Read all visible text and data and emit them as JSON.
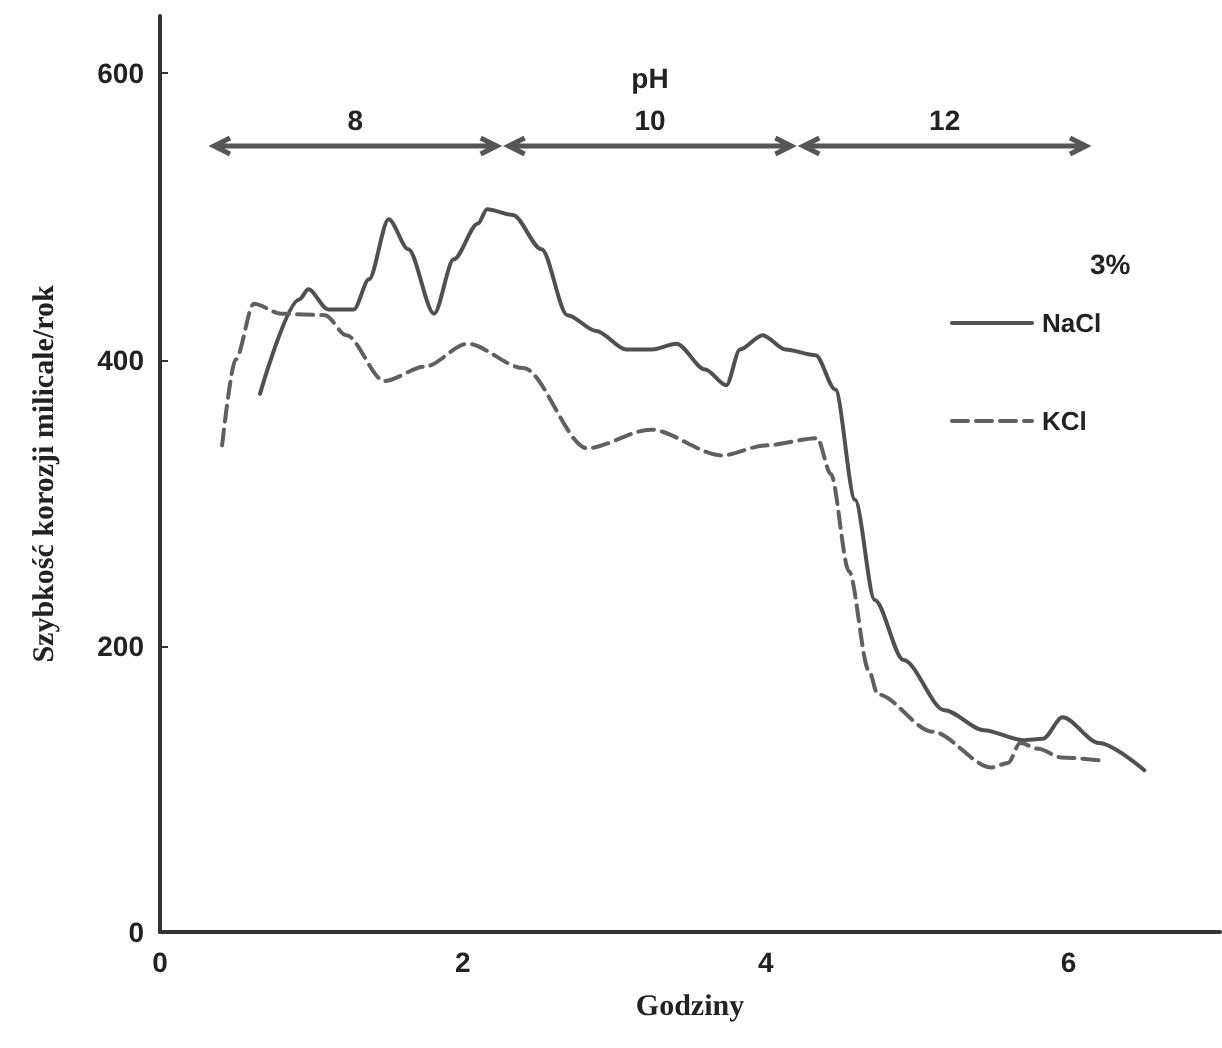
{
  "chart_data": {
    "type": "line",
    "xlabel": "Godziny",
    "ylabel": "Szybkość korozji milicale/rok",
    "legend_title": "3%",
    "legend": "right",
    "marker": "none",
    "grid": false,
    "xlim": [
      0,
      7
    ],
    "xticks": [
      0,
      2,
      4,
      6
    ],
    "ylim": [
      0,
      640
    ],
    "yticks": [
      0,
      200,
      400,
      600
    ],
    "annotations": [
      "pH",
      "8",
      "10",
      "12"
    ],
    "series": [
      {
        "name": "NaCl",
        "color": "#505050",
        "line_style": "solid",
        "x": [
          0.66,
          0.92,
          0.98,
          1.11,
          1.28,
          1.38,
          1.51,
          1.64,
          1.81,
          1.94,
          2.1,
          2.16,
          2.33,
          2.52,
          2.69,
          2.88,
          3.08,
          3.25,
          3.41,
          3.6,
          3.74,
          3.83,
          3.98,
          4.13,
          4.33,
          4.46,
          4.59,
          4.72,
          4.91,
          5.18,
          5.44,
          5.7,
          5.83,
          5.96,
          6.2,
          6.5
        ],
        "values": [
          376,
          442,
          449,
          435,
          435,
          456,
          498,
          477,
          432,
          470,
          495,
          505,
          501,
          477,
          431,
          420,
          407,
          407,
          411,
          393,
          382,
          407,
          417,
          407,
          403,
          379,
          302,
          232,
          190,
          155,
          141,
          134,
          135,
          150,
          132,
          113
        ]
      },
      {
        "name": "KCl",
        "color": "#606060",
        "line_style": "dashed",
        "x": [
          0.41,
          0.5,
          0.62,
          0.8,
          1.09,
          1.23,
          1.48,
          1.75,
          2.03,
          2.4,
          2.82,
          3.24,
          3.71,
          4.0,
          4.34,
          4.43,
          4.55,
          4.68,
          4.74,
          5.1,
          5.49,
          5.6,
          5.68,
          5.8,
          5.95,
          6.2
        ],
        "values": [
          340,
          400,
          439,
          432,
          431,
          417,
          385,
          395,
          411,
          394,
          338,
          351,
          333,
          340,
          345,
          320,
          252,
          183,
          166,
          140,
          115,
          118,
          132,
          128,
          122,
          120
        ]
      }
    ]
  }
}
